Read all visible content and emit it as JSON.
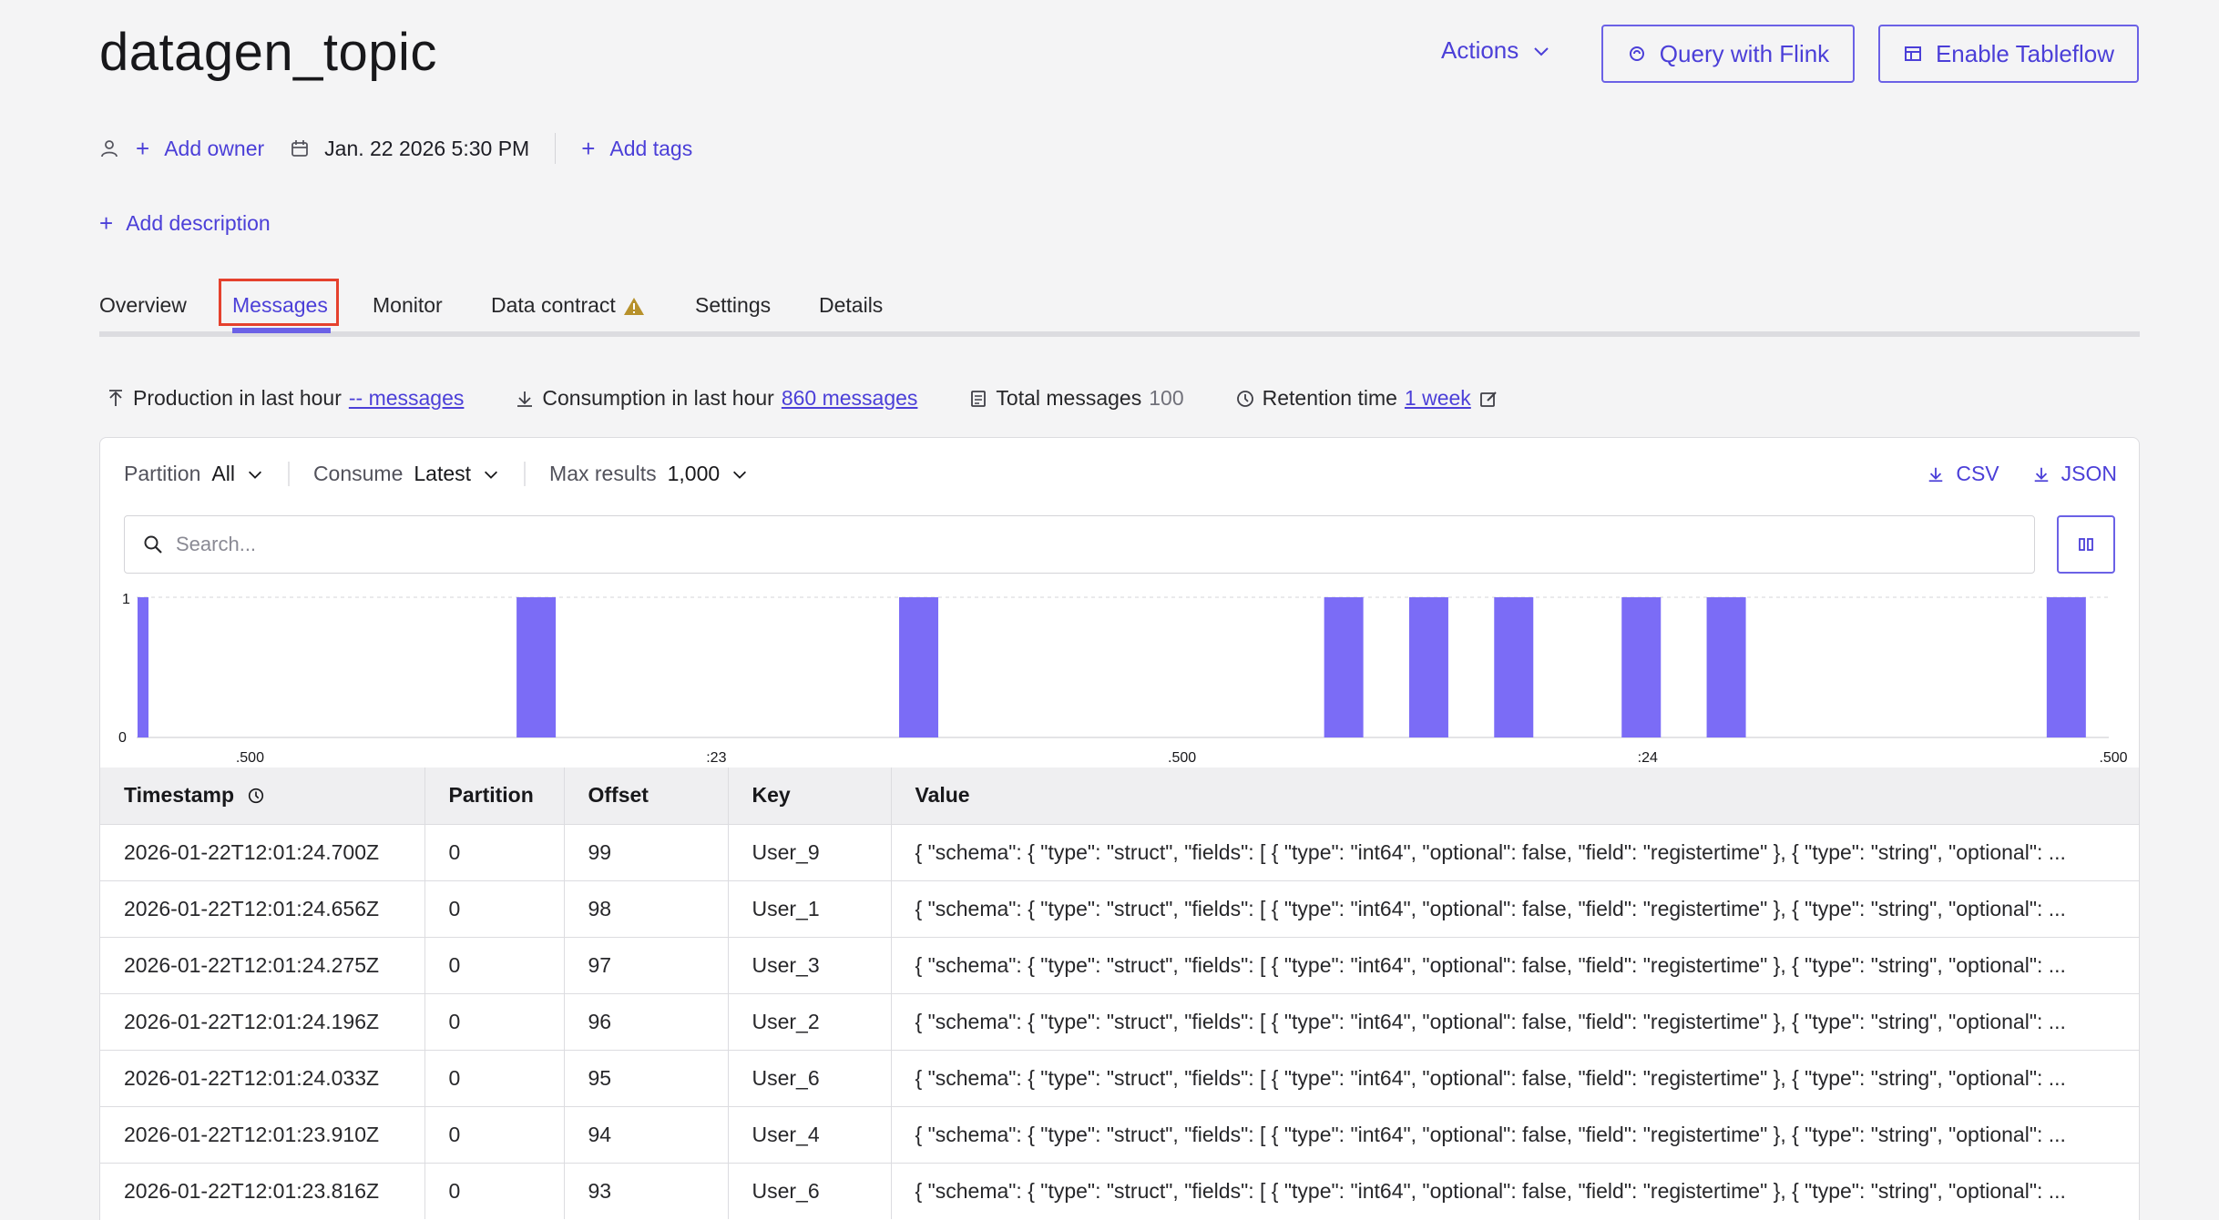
{
  "topic": {
    "title": "datagen_topic"
  },
  "header": {
    "actions_label": "Actions",
    "query_flink_label": "Query with Flink",
    "enable_tableflow_label": "Enable Tableflow"
  },
  "meta": {
    "add_owner": "Add owner",
    "created": "Jan. 22 2026 5:30 PM",
    "add_tags": "Add tags",
    "add_description": "Add description"
  },
  "tabs": [
    {
      "label": "Overview"
    },
    {
      "label": "Messages"
    },
    {
      "label": "Monitor"
    },
    {
      "label": "Data contract"
    },
    {
      "label": "Settings"
    },
    {
      "label": "Details"
    }
  ],
  "stats": {
    "production_label": "Production in last hour",
    "production_value": "-- messages",
    "consumption_label": "Consumption in last hour",
    "consumption_value": "860 messages",
    "total_label": "Total messages",
    "total_value": "100",
    "retention_label": "Retention time",
    "retention_value": "1 week"
  },
  "filters": {
    "partition_label": "Partition",
    "partition_value": "All",
    "consume_label": "Consume",
    "consume_value": "Latest",
    "max_label": "Max results",
    "max_value": "1,000"
  },
  "downloads": {
    "csv": "CSV",
    "json": "JSON"
  },
  "search": {
    "placeholder": "Search..."
  },
  "chart_data": {
    "type": "bar",
    "y_ticks": [
      "1",
      "0"
    ],
    "ylim": [
      0,
      1
    ],
    "x_tick_labels": [
      ".500",
      ":23",
      ".500",
      ":24",
      ".500"
    ],
    "bars": [
      0.5,
      47,
      92,
      142,
      152,
      162,
      177,
      187,
      227
    ],
    "x_range": [
      0,
      232
    ],
    "values": [
      1,
      1,
      1,
      1,
      1,
      1,
      1,
      1,
      1
    ],
    "color": "#7b6cf6"
  },
  "table": {
    "columns": [
      "Timestamp",
      "Partition",
      "Offset",
      "Key",
      "Value"
    ],
    "rows": [
      [
        "2026-01-22T12:01:24.700Z",
        "0",
        "99",
        "User_9",
        "{ \"schema\": { \"type\": \"struct\", \"fields\": [ { \"type\": \"int64\", \"optional\": false, \"field\": \"registertime\" }, { \"type\": \"string\", \"optional\": ..."
      ],
      [
        "2026-01-22T12:01:24.656Z",
        "0",
        "98",
        "User_1",
        "{ \"schema\": { \"type\": \"struct\", \"fields\": [ { \"type\": \"int64\", \"optional\": false, \"field\": \"registertime\" }, { \"type\": \"string\", \"optional\": ..."
      ],
      [
        "2026-01-22T12:01:24.275Z",
        "0",
        "97",
        "User_3",
        "{ \"schema\": { \"type\": \"struct\", \"fields\": [ { \"type\": \"int64\", \"optional\": false, \"field\": \"registertime\" }, { \"type\": \"string\", \"optional\": ..."
      ],
      [
        "2026-01-22T12:01:24.196Z",
        "0",
        "96",
        "User_2",
        "{ \"schema\": { \"type\": \"struct\", \"fields\": [ { \"type\": \"int64\", \"optional\": false, \"field\": \"registertime\" }, { \"type\": \"string\", \"optional\": ..."
      ],
      [
        "2026-01-22T12:01:24.033Z",
        "0",
        "95",
        "User_6",
        "{ \"schema\": { \"type\": \"struct\", \"fields\": [ { \"type\": \"int64\", \"optional\": false, \"field\": \"registertime\" }, { \"type\": \"string\", \"optional\": ..."
      ],
      [
        "2026-01-22T12:01:23.910Z",
        "0",
        "94",
        "User_4",
        "{ \"schema\": { \"type\": \"struct\", \"fields\": [ { \"type\": \"int64\", \"optional\": false, \"field\": \"registertime\" }, { \"type\": \"string\", \"optional\": ..."
      ],
      [
        "2026-01-22T12:01:23.816Z",
        "0",
        "93",
        "User_6",
        "{ \"schema\": { \"type\": \"struct\", \"fields\": [ { \"type\": \"int64\", \"optional\": false, \"field\": \"registertime\" }, { \"type\": \"string\", \"optional\": ..."
      ]
    ]
  }
}
